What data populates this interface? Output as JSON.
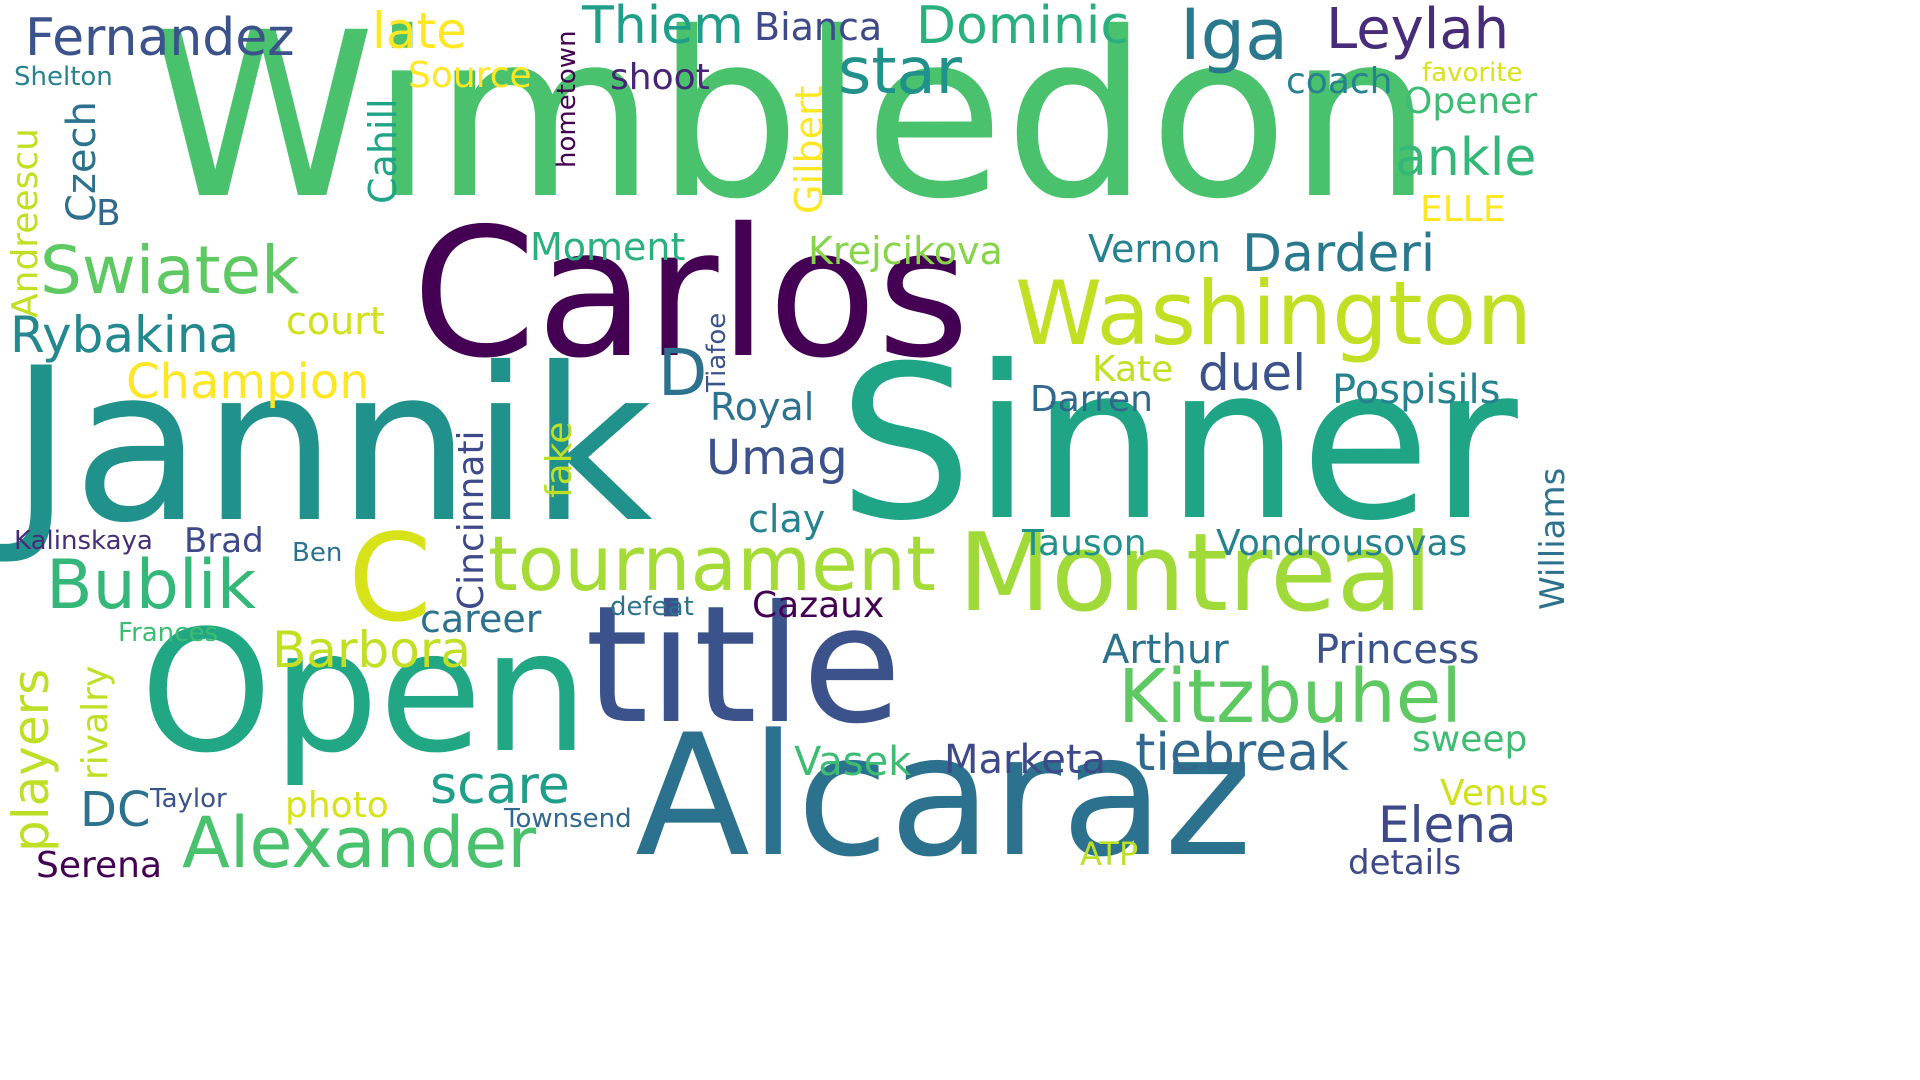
{
  "words": {
    "wimbledon": {
      "text": "Wimbledon",
      "color": "#4ac16d"
    },
    "carlos": {
      "text": "Carlos",
      "color": "#440154"
    },
    "jannik": {
      "text": "Jannik",
      "color": "#21918c"
    },
    "sinner": {
      "text": "Sinner",
      "color": "#20a486"
    },
    "alcaraz": {
      "text": "Alcaraz",
      "color": "#2c728e"
    },
    "title": {
      "text": "title",
      "color": "#3b528b"
    },
    "open": {
      "text": "Open",
      "color": "#22a785"
    },
    "montreal": {
      "text": "Montreal",
      "color": "#a0da39"
    },
    "washington": {
      "text": "Washington",
      "color": "#c2df23"
    },
    "c": {
      "text": "C",
      "color": "#d8e219"
    },
    "tournament": {
      "text": "tournament",
      "color": "#a5db36"
    },
    "kitzbuhel": {
      "text": "Kitzbuhel",
      "color": "#5ec962"
    },
    "alexander": {
      "text": "Alexander",
      "color": "#4ac16d"
    },
    "iga": {
      "text": "Iga",
      "color": "#2a788e"
    },
    "swiatek": {
      "text": "Swiatek",
      "color": "#5ec962"
    },
    "star": {
      "text": "star",
      "color": "#21918c"
    },
    "bublik": {
      "text": "Bublik",
      "color": "#35b779"
    },
    "fernandez": {
      "text": "Fernandez",
      "color": "#3b528b"
    },
    "dominic": {
      "text": "Dominic",
      "color": "#2ab07f"
    },
    "darderi": {
      "text": "Darderi",
      "color": "#2a788e"
    },
    "leylah": {
      "text": "Leylah",
      "color": "#472c7a"
    },
    "thiem": {
      "text": "Thiem",
      "color": "#1f9e89"
    },
    "barbora": {
      "text": "Barbora",
      "color": "#c2df23"
    },
    "rybakina": {
      "text": "Rybakina",
      "color": "#23898e"
    },
    "champion": {
      "text": "Champion",
      "color": "#fde725"
    },
    "tiebreak": {
      "text": "tiebreak",
      "color": "#31688e"
    },
    "elena": {
      "text": "Elena",
      "color": "#3e4989"
    },
    "scare": {
      "text": "scare",
      "color": "#1f9e89"
    },
    "players": {
      "text": "players",
      "color": "#bddf26"
    },
    "umag": {
      "text": "Umag",
      "color": "#3b528b"
    },
    "d": {
      "text": "D",
      "color": "#2c728e"
    },
    "duel": {
      "text": "duel",
      "color": "#3b528b"
    },
    "ankle": {
      "text": "ankle",
      "color": "#35b779"
    },
    "late": {
      "text": "late",
      "color": "#fde725"
    },
    "dc": {
      "text": "DC",
      "color": "#2c728e"
    },
    "cincinnati": {
      "text": "Cincinnati",
      "color": "#3e4989"
    },
    "pospisils": {
      "text": "Pospisils",
      "color": "#26828e"
    },
    "marketa": {
      "text": "Marketa",
      "color": "#3e4989"
    },
    "princess": {
      "text": "Princess",
      "color": "#3b528b"
    },
    "vondrousovas": {
      "text": "Vondrousovas",
      "color": "#26828e"
    },
    "arthur": {
      "text": "Arthur",
      "color": "#2c728e"
    },
    "krejcikova": {
      "text": "Krejcikova",
      "color": "#86d549"
    },
    "vernon": {
      "text": "Vernon",
      "color": "#26828e"
    },
    "vasek": {
      "text": "Vasek",
      "color": "#3fbc73"
    },
    "serena": {
      "text": "Serena",
      "color": "#440154"
    },
    "moment": {
      "text": "Moment",
      "color": "#2ab07f"
    },
    "royal": {
      "text": "Royal",
      "color": "#2c728e"
    },
    "career": {
      "text": "career",
      "color": "#2c728e"
    },
    "photo": {
      "text": "photo",
      "color": "#d8e219"
    },
    "source": {
      "text": "Source",
      "color": "#fde725"
    },
    "bianca": {
      "text": "Bianca",
      "color": "#3e4989"
    },
    "shoot": {
      "text": "shoot",
      "color": "#482475"
    },
    "coach": {
      "text": "coach",
      "color": "#26828e"
    },
    "opener": {
      "text": "Opener",
      "color": "#3fbc73"
    },
    "andreescu": {
      "text": "Andreescu",
      "color": "#c2df23"
    },
    "czech": {
      "text": "Czech",
      "color": "#2c728e"
    },
    "b": {
      "text": "B",
      "color": "#31688e"
    },
    "cahill": {
      "text": "Cahill",
      "color": "#20a486"
    },
    "gilbert": {
      "text": "Gilbert",
      "color": "#fde725"
    },
    "hometown": {
      "text": "hometown",
      "color": "#440154"
    },
    "court": {
      "text": "court",
      "color": "#d0e11c"
    },
    "kate": {
      "text": "Kate",
      "color": "#c2df23"
    },
    "darren": {
      "text": "Darren",
      "color": "#31688e"
    },
    "williams": {
      "text": "Williams",
      "color": "#2c728e"
    },
    "clay": {
      "text": "clay",
      "color": "#26828e"
    },
    "fake": {
      "text": "fake",
      "color": "#bddf26"
    },
    "tiafoe": {
      "text": "Tiafoe",
      "color": "#3b528b"
    },
    "tauson": {
      "text": "Tauson",
      "color": "#21918c"
    },
    "cazaux": {
      "text": "Cazaux",
      "color": "#440154"
    },
    "defeat": {
      "text": "defeat",
      "color": "#2c728e"
    },
    "frances": {
      "text": "Frances",
      "color": "#3fbc73"
    },
    "rivalry": {
      "text": "rivalry",
      "color": "#bddf26"
    },
    "kalinskaya": {
      "text": "Kalinskaya",
      "color": "#472c7a"
    },
    "brad": {
      "text": "Brad",
      "color": "#3e4989"
    },
    "ben": {
      "text": "Ben",
      "color": "#2c728e"
    },
    "sweep": {
      "text": "sweep",
      "color": "#3fbc73"
    },
    "venus": {
      "text": "Venus",
      "color": "#d0e11c"
    },
    "taylor": {
      "text": "Taylor",
      "color": "#3b528b"
    },
    "townsend": {
      "text": "Townsend",
      "color": "#31688e"
    },
    "atp": {
      "text": "ATP",
      "color": "#bddf26"
    },
    "details": {
      "text": "details",
      "color": "#3e4989"
    },
    "shelton": {
      "text": "Shelton",
      "color": "#26828e"
    },
    "favorite": {
      "text": "favorite",
      "color": "#d8e219"
    },
    "elle": {
      "text": "ELLE",
      "color": "#fde725"
    }
  }
}
